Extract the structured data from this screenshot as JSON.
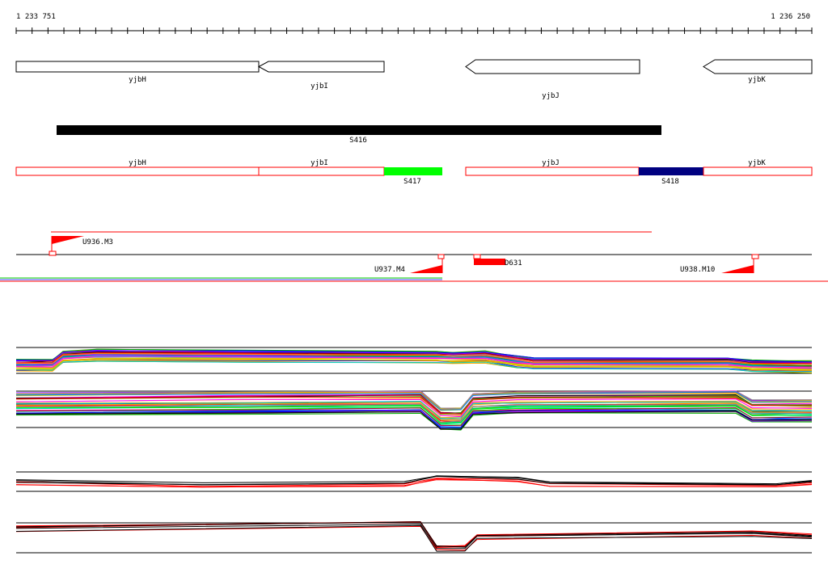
{
  "coords": {
    "start": "1 233 751",
    "end": "1 236 250"
  },
  "genes": [
    {
      "name": "yjbH"
    },
    {
      "name": "yjbI"
    },
    {
      "name": "yjbJ"
    },
    {
      "name": "yjbK"
    }
  ],
  "segment": {
    "name": "S416"
  },
  "transcripts": {
    "genes": [
      {
        "name": "yjbH"
      },
      {
        "name": "yjbI"
      },
      {
        "name": "yjbJ"
      },
      {
        "name": "yjbK"
      }
    ],
    "highlights": [
      {
        "name": "S417",
        "color": "#00ff00"
      },
      {
        "name": "S418",
        "color": "#000080"
      }
    ]
  },
  "features": [
    {
      "name": "U936.M3",
      "color": "#ff0000"
    },
    {
      "name": "U937.M4",
      "color": "#ff0000"
    },
    {
      "name": "D631",
      "color": "#ff0000"
    },
    {
      "name": "U938.M10",
      "color": "#ff0000"
    }
  ],
  "colors": {
    "accent": "#ff0000",
    "outline": "#000000"
  }
}
